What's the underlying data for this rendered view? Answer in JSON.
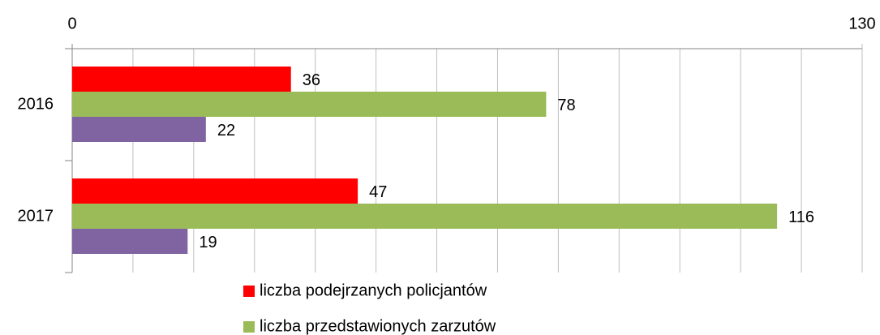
{
  "chart_data": {
    "type": "bar",
    "orientation": "horizontal",
    "categories": [
      "2016",
      "2017"
    ],
    "series": [
      {
        "name": "liczba podejrzanych policjantów",
        "color": "#ff0000",
        "values": [
          36,
          47
        ]
      },
      {
        "name": "liczba przedstawionych zarzutów",
        "color": "#9bbb59",
        "values": [
          78,
          116
        ]
      },
      {
        "color": "#8064a2",
        "values": [
          22,
          19
        ]
      }
    ],
    "xlim": [
      0,
      130
    ],
    "xticks": [
      0,
      130
    ],
    "minor_xticks": [
      10,
      20,
      30,
      40,
      50,
      60,
      70,
      80,
      90,
      100,
      110,
      120
    ],
    "grid": true,
    "legend": "bottom"
  }
}
